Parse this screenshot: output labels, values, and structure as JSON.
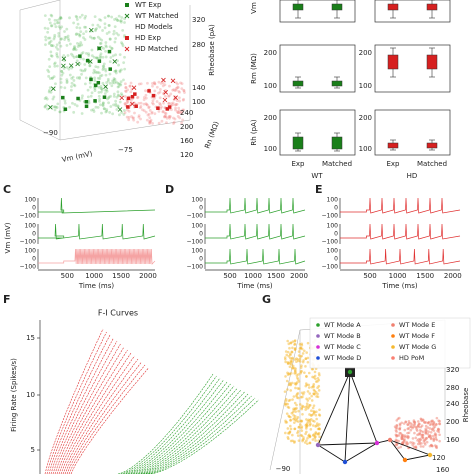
{
  "panel_labels": [
    "C",
    "D",
    "E",
    "F",
    "G"
  ],
  "scatter_a": {
    "legend": [
      "WT Exp",
      "WT Matched",
      "HD Models",
      "HD Exp",
      "HD Matched"
    ],
    "x_label": "Vm (mV)",
    "x_ticks": [
      "−90",
      "−75"
    ],
    "y_label": "Rn (MΩ)",
    "y_ticks": [
      "240",
      "200",
      "160",
      "120"
    ],
    "z_label": "Rheobase (pA)",
    "z_ticks": [
      "320",
      "280",
      "140",
      "100"
    ]
  },
  "boxes": {
    "row_labels": [
      "Vm",
      "Rm (MΩ)",
      "Rh (pA)"
    ],
    "ticks": [
      "200",
      "100"
    ],
    "x_ticks": [
      "Exp",
      "Matched"
    ],
    "groups": [
      "WT",
      "HD"
    ]
  },
  "traces": {
    "y_label": "Vm (mV)",
    "y_ticks": [
      "100",
      "0",
      "−100"
    ],
    "x_ticks": [
      "500",
      "1000",
      "1500",
      "2000"
    ],
    "x_label": "Time (ms)"
  },
  "fi": {
    "title": "F-I Curves",
    "y_label": "Firing Rate (Spikes/s)",
    "y_ticks": [
      "15",
      "10",
      "5"
    ]
  },
  "scatter_g": {
    "legend": [
      "WT Mode A",
      "WT Mode B",
      "WT Mode C",
      "WT Mode D",
      "WT Mode E",
      "WT Mode F",
      "WT Mode G",
      "HD PoM"
    ],
    "z_label": "Rheobase",
    "z_ticks": [
      "320",
      "280",
      "240",
      "200",
      "160"
    ],
    "x_ticks": [
      "−90"
    ],
    "y_ticks": [
      "120",
      "160"
    ]
  }
}
